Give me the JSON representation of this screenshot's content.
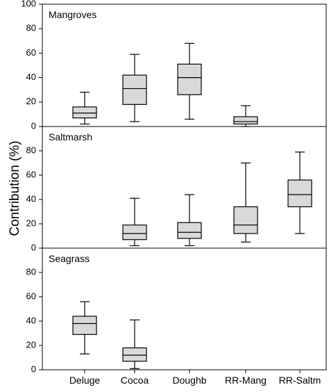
{
  "chart_data": {
    "type": "box",
    "ylabel": "Contribution (%)",
    "categories": [
      "Deluge",
      "Cocoa",
      "Doughb",
      "RR-Mang",
      "RR-Saltm"
    ],
    "box_fill": "#d9d9d9",
    "panels": [
      {
        "title": "Mangroves",
        "ylim": [
          0,
          100
        ],
        "yticks": [
          0,
          20,
          40,
          60,
          80,
          100
        ],
        "boxes": [
          {
            "category": "Deluge",
            "min": 2,
            "q1": 7,
            "median": 11,
            "q3": 16,
            "max": 28
          },
          {
            "category": "Cocoa",
            "min": 4,
            "q1": 18,
            "median": 31,
            "q3": 42,
            "max": 59
          },
          {
            "category": "Doughb",
            "min": 6,
            "q1": 26,
            "median": 40,
            "q3": 51,
            "max": 68
          },
          {
            "category": "RR-Mang",
            "min": 0,
            "q1": 2,
            "median": 4,
            "q3": 8,
            "max": 17
          }
        ]
      },
      {
        "title": "Saltmarsh",
        "ylim": [
          0,
          100
        ],
        "yticks": [
          0,
          20,
          40,
          60,
          80
        ],
        "boxes": [
          {
            "category": "Cocoa",
            "min": 2,
            "q1": 7,
            "median": 12,
            "q3": 19,
            "max": 41
          },
          {
            "category": "Doughb",
            "min": 2,
            "q1": 8,
            "median": 13,
            "q3": 21,
            "max": 44
          },
          {
            "category": "RR-Mang",
            "min": 5,
            "q1": 12,
            "median": 19,
            "q3": 34,
            "max": 70
          },
          {
            "category": "RR-Saltm",
            "min": 12,
            "q1": 34,
            "median": 44,
            "q3": 56,
            "max": 79
          }
        ]
      },
      {
        "title": "Seagrass",
        "ylim": [
          0,
          100
        ],
        "yticks": [
          0,
          20,
          40,
          60,
          80
        ],
        "boxes": [
          {
            "category": "Deluge",
            "min": 13,
            "q1": 29,
            "median": 38,
            "q3": 44,
            "max": 56
          },
          {
            "category": "Cocoa",
            "min": 1,
            "q1": 7,
            "median": 12,
            "q3": 18,
            "max": 41
          }
        ]
      }
    ]
  }
}
